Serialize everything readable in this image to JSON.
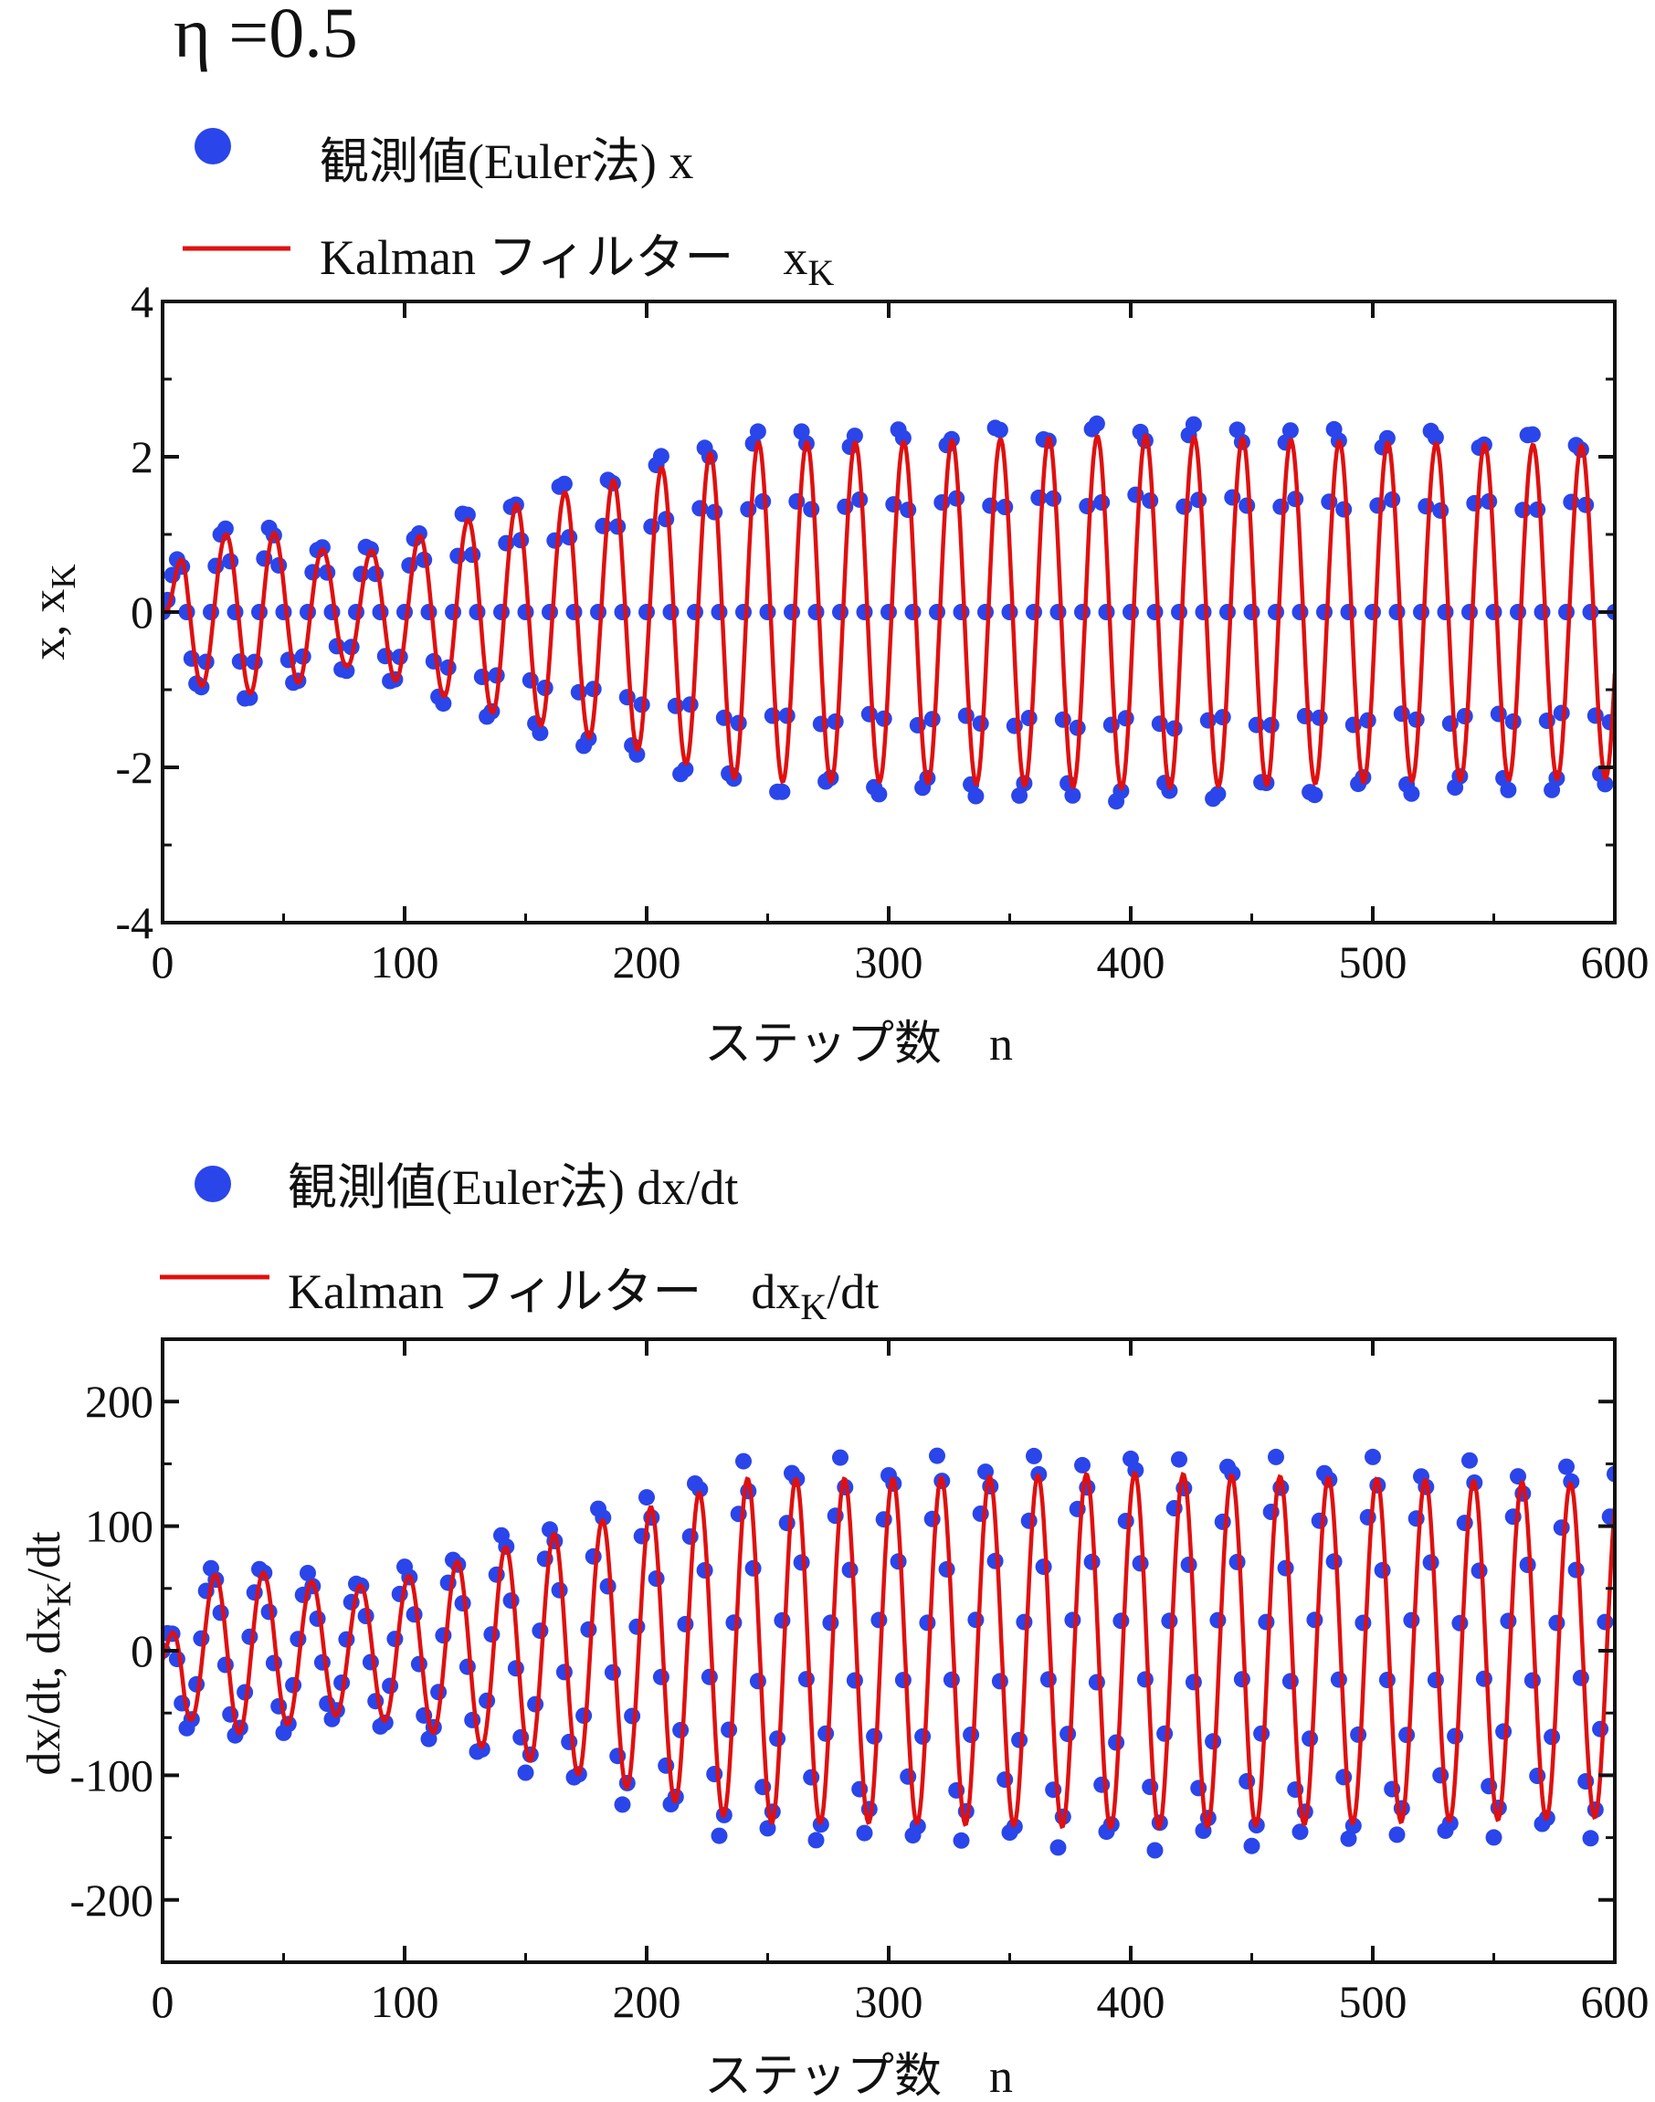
{
  "figure": {
    "parameter_label": "η =0.5"
  },
  "chart_data": [
    {
      "type": "line",
      "title": "",
      "xlabel": "ステップ数　n",
      "ylabel_main": "x,  x",
      "ylabel_sub": "K",
      "xlim": [
        0,
        600
      ],
      "ylim": [
        -4,
        4
      ],
      "xticks": [
        0,
        100,
        200,
        300,
        400,
        500,
        600
      ],
      "yticks": [
        -4,
        -2,
        0,
        2,
        4
      ],
      "xtick_labels": [
        "0",
        "100",
        "200",
        "300",
        "400",
        "500",
        "600"
      ],
      "ytick_labels": [
        "-4",
        "-2",
        "0",
        "2",
        "4"
      ],
      "legend": {
        "placement": "top-left",
        "observed": {
          "label": "観測値(Euler法) x",
          "sub": ""
        },
        "kalman": {
          "label": "Kalman フィルター　x",
          "sub": "K"
        }
      },
      "period_steps": 20,
      "amplitude_envelope": {
        "steps": [
          10,
          40,
          75,
          100,
          140,
          200,
          240,
          300,
          400,
          500,
          600
        ],
        "amplitude": [
          1.0,
          1.15,
          0.75,
          1.0,
          1.45,
          1.95,
          2.35,
          2.35,
          2.45,
          2.35,
          2.3
        ]
      },
      "series": [
        {
          "name": "観測値(Euler法) x",
          "style": "scatter",
          "color": "#2a45ea",
          "step_spacing": 2
        },
        {
          "name": "Kalman フィルター　xK",
          "style": "line",
          "color": "#e01010"
        }
      ]
    },
    {
      "type": "line",
      "title": "",
      "xlabel": "ステップ数　n",
      "ylabel_main": "dx/dt,  dx",
      "ylabel_sub": "K",
      "ylabel_tail": "/dt",
      "xlim": [
        0,
        600
      ],
      "ylim": [
        -250,
        250
      ],
      "xticks": [
        0,
        100,
        200,
        300,
        400,
        500,
        600
      ],
      "yticks": [
        -200,
        -100,
        0,
        100,
        200
      ],
      "xtick_labels": [
        "0",
        "100",
        "200",
        "300",
        "400",
        "500",
        "600"
      ],
      "ytick_labels": [
        "-200",
        "-100",
        "0",
        "100",
        "200"
      ],
      "legend": {
        "placement": "top-left",
        "observed": {
          "label": "観測値(Euler法) dx/dt",
          "sub": ""
        },
        "kalman": {
          "label": "Kalman フィルター　dx",
          "sub": "K",
          "tail": "/dt"
        }
      },
      "period_steps": 20,
      "amplitude_envelope": {
        "steps": [
          10,
          30,
          75,
          100,
          140,
          200,
          240,
          300,
          400,
          500,
          600
        ],
        "amplitude": [
          60,
          72,
          55,
          65,
          90,
          125,
          150,
          150,
          155,
          150,
          145
        ]
      },
      "series": [
        {
          "name": "観測値(Euler法) dx/dt",
          "style": "scatter",
          "color": "#2a45ea",
          "step_spacing": 2
        },
        {
          "name": "Kalman フィルター　dxK/dt",
          "style": "line",
          "color": "#e01010"
        }
      ]
    }
  ]
}
